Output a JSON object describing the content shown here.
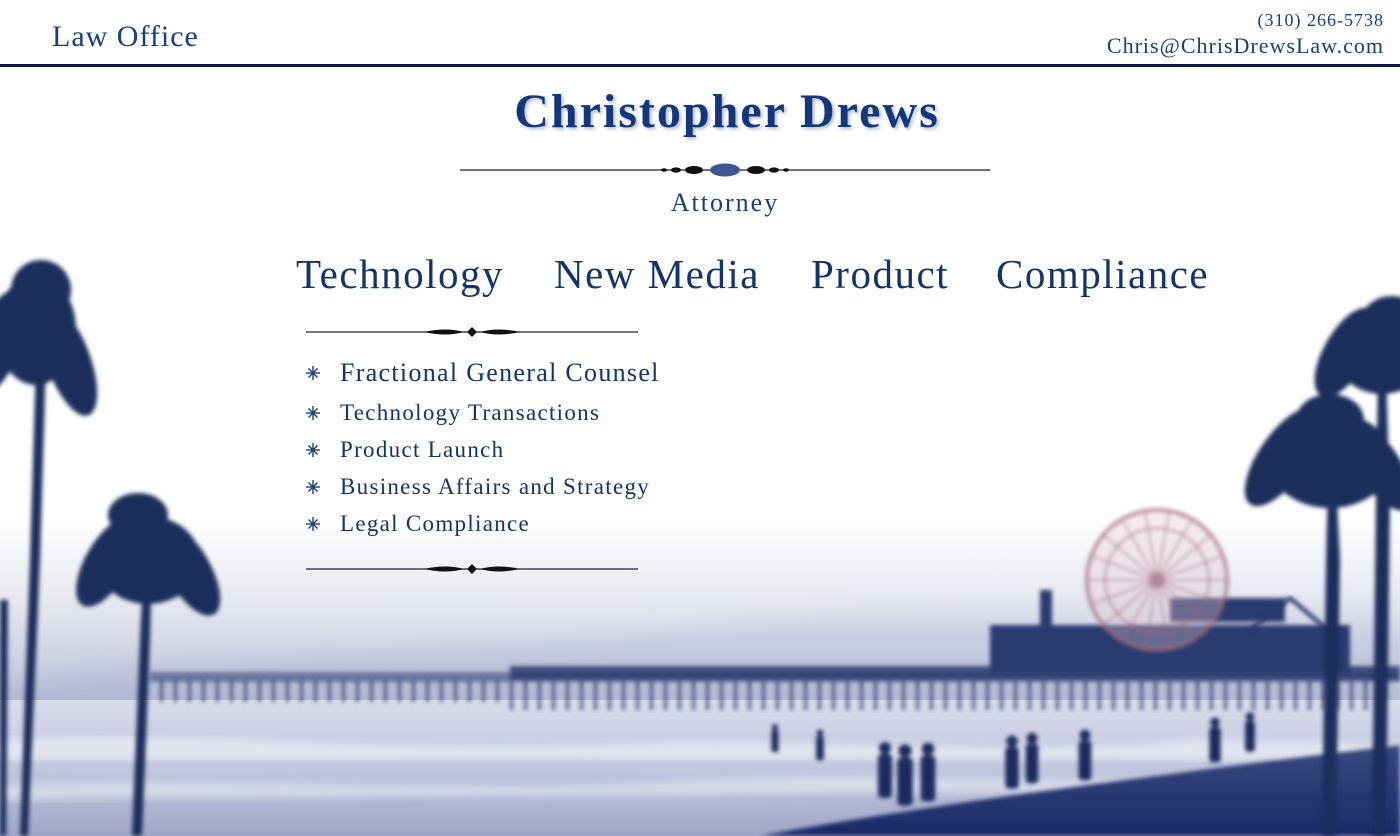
{
  "header": {
    "office_label": "Law Office",
    "phone": "(310) 266-5738",
    "email": "Chris@ChrisDrewsLaw.com"
  },
  "title": {
    "name": "Christopher Drews",
    "role": "Attorney"
  },
  "nav": {
    "items": [
      {
        "label": "Technology"
      },
      {
        "label": "New Media"
      },
      {
        "label": "Product"
      },
      {
        "label": "Compliance"
      }
    ]
  },
  "services": {
    "items": [
      {
        "label": "Fractional General Counsel"
      },
      {
        "label": "Technology Transactions"
      },
      {
        "label": "Product Launch"
      },
      {
        "label": "Business Affairs and Strategy"
      },
      {
        "label": "Legal Compliance"
      }
    ]
  },
  "icons": {
    "bullet": "asterisk-bullet-icon",
    "ornament": "flourish-divider-icon"
  },
  "colors": {
    "text_navy": "#14336b",
    "header_rule": "#0f1a3a",
    "palm_silhouette": "#1a2e5c"
  }
}
